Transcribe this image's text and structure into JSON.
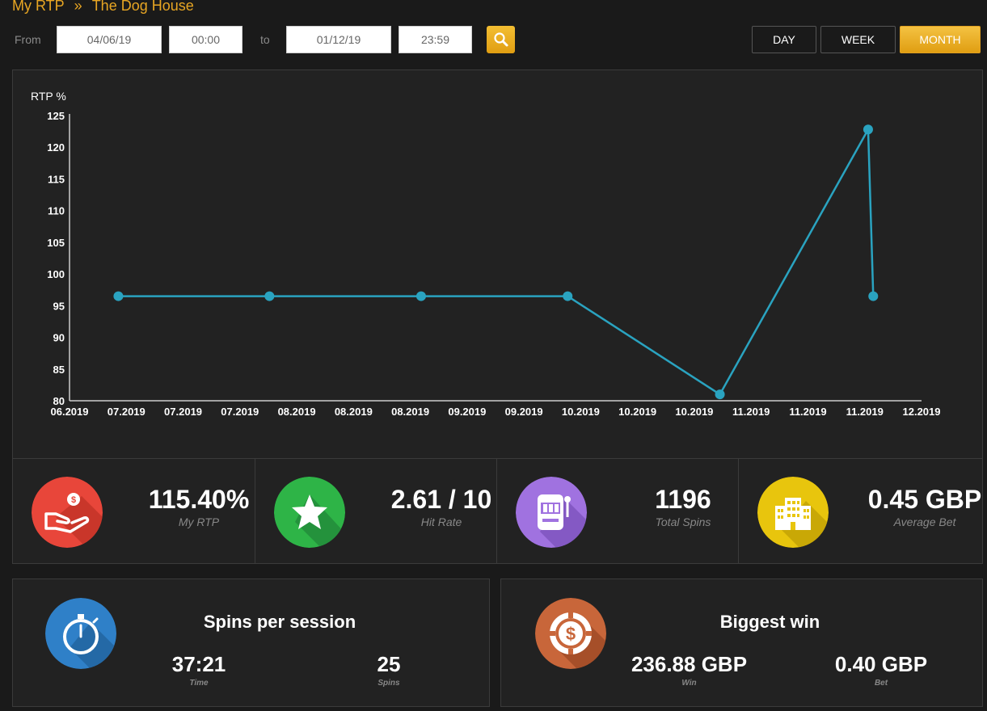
{
  "breadcrumb": {
    "root": "My RTP",
    "separator": "»",
    "current": "The Dog House"
  },
  "filters": {
    "from_label": "From",
    "from_date": "04/06/19",
    "from_time": "00:00",
    "to_label": "to",
    "to_date": "01/12/19",
    "to_time": "23:59",
    "periods": [
      "DAY",
      "WEEK",
      "MONTH"
    ],
    "active_period": "MONTH"
  },
  "chart_data": {
    "type": "line",
    "ylabel": "RTP %",
    "ylim": [
      80,
      125
    ],
    "yticks": [
      80,
      85,
      90,
      95,
      100,
      105,
      110,
      115,
      120,
      125
    ],
    "xtick_labels": [
      "06.2019",
      "07.2019",
      "07.2019",
      "07.2019",
      "08.2019",
      "08.2019",
      "08.2019",
      "09.2019",
      "09.2019",
      "10.2019",
      "10.2019",
      "10.2019",
      "11.2019",
      "11.2019",
      "11.2019",
      "12.2019"
    ],
    "series": [
      {
        "color": "#2aa3c0",
        "points": [
          {
            "x": 0.86,
            "y": 96.5
          },
          {
            "x": 3.52,
            "y": 96.5
          },
          {
            "x": 6.19,
            "y": 96.5
          },
          {
            "x": 8.77,
            "y": 96.5
          },
          {
            "x": 11.45,
            "y": 81.0
          },
          {
            "x": 14.06,
            "y": 122.8
          },
          {
            "x": 14.15,
            "y": 96.5
          }
        ]
      }
    ],
    "grid": false,
    "legend": "none"
  },
  "stats": [
    {
      "value": "115.40%",
      "label": "My RTP",
      "icon": "hand-coin-icon",
      "color": "#e8463a"
    },
    {
      "value": "2.61 / 10",
      "label": "Hit Rate",
      "icon": "star-icon",
      "color": "#2eb447"
    },
    {
      "value": "1196",
      "label": "Total Spins",
      "icon": "slot-machine-icon",
      "color": "#a072e0"
    },
    {
      "value": "0.45 GBP",
      "label": "Average Bet",
      "icon": "building-icon",
      "color": "#e8c50d"
    }
  ],
  "session": {
    "title": "Spins per session",
    "time_value": "37:21",
    "time_label": "Time",
    "spins_value": "25",
    "spins_label": "Spins",
    "icon": "stopwatch-icon",
    "color": "#2f80c8"
  },
  "biggest_win": {
    "title": "Biggest win",
    "win_value": "236.88 GBP",
    "win_label": "Win",
    "bet_value": "0.40 GBP",
    "bet_label": "Bet",
    "icon": "casino-chip-icon",
    "color": "#c8663a"
  }
}
